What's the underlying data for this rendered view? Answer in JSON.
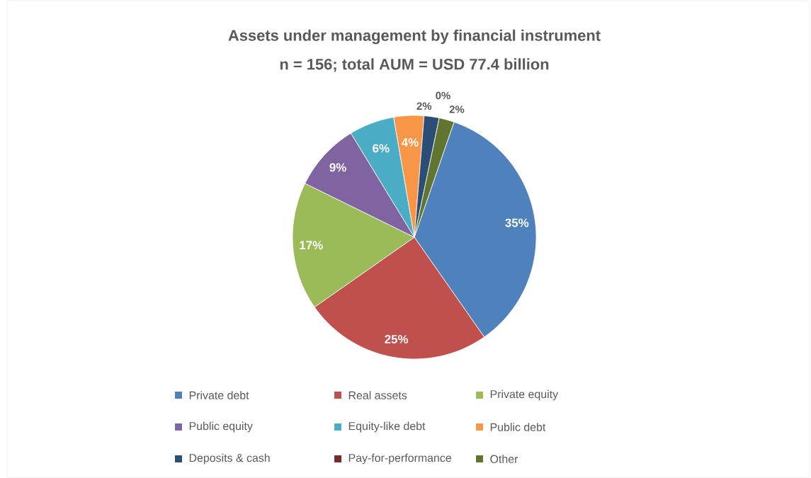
{
  "chart_data": {
    "type": "pie",
    "title": "Assets under management by financial instrument",
    "subtitle": "n = 156; total AUM = USD 77.4 billion",
    "categories": [
      "Private debt",
      "Real assets",
      "Private equity",
      "Public equity",
      "Equity-like debt",
      "Public debt",
      "Deposits & cash",
      "Pay-for-performance",
      "Other"
    ],
    "values": [
      35,
      25,
      17,
      9,
      6,
      4,
      2,
      0,
      2
    ],
    "value_labels": [
      "35%",
      "25%",
      "17%",
      "9%",
      "6%",
      "4%",
      "2%",
      "0%",
      "2%"
    ],
    "colors": [
      "#4f81bd",
      "#c0504d",
      "#9bbb59",
      "#8064a2",
      "#4bacc6",
      "#f79646",
      "#2c4d75",
      "#772c2a",
      "#5f7530"
    ],
    "legend": "bottom"
  }
}
